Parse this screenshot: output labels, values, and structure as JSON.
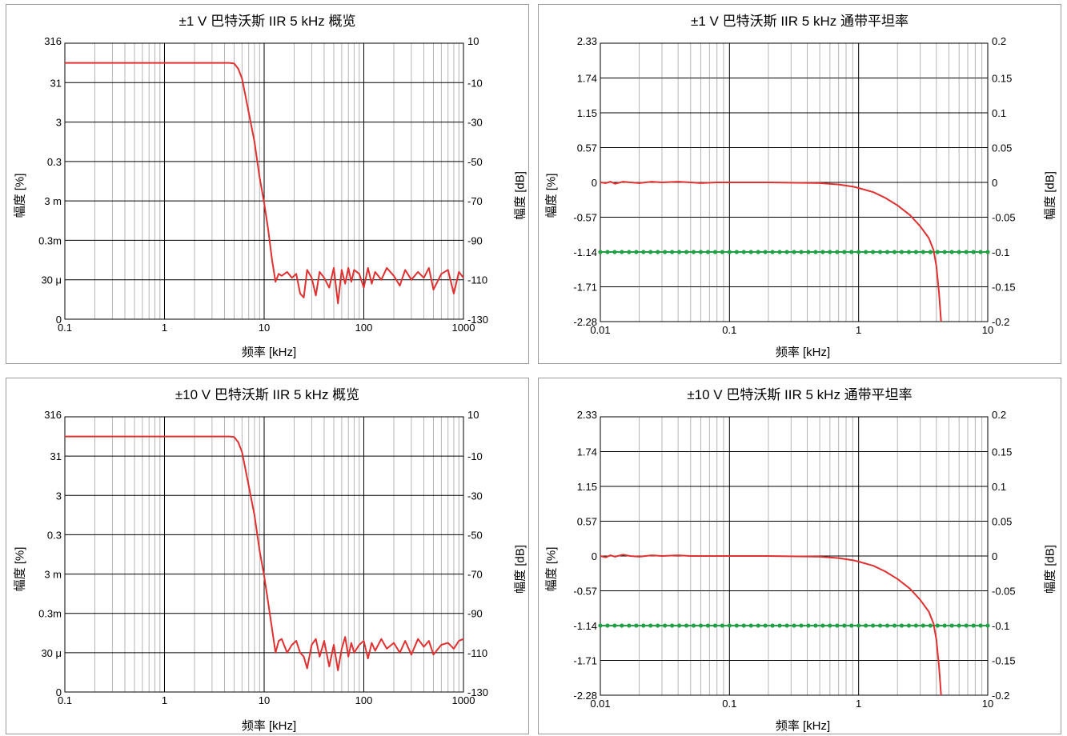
{
  "colors": {
    "trace": "#e03030",
    "limit": "#22a045",
    "major_grid": "#000000",
    "minor_grid": "#b4b4b4",
    "border": "#9a9a9a"
  },
  "chart_data": [
    {
      "type": "line",
      "title": "±1 V 巴特沃斯 IIR 5 kHz 概览",
      "xlabel": "频率 [kHz]",
      "ylabel": "幅度 [%]",
      "y2label": "幅度 [dB]",
      "x_scale": "log",
      "xlim": [
        0.1,
        1000
      ],
      "x_ticks": [
        "0.1",
        "1",
        "10",
        "100",
        "1000"
      ],
      "y2lim": [
        -130,
        10
      ],
      "y_ticks": [
        "316",
        "31",
        "3",
        "0.3",
        "3 m",
        "0.3m",
        "30 μ",
        "0"
      ],
      "y2_ticks": [
        "10",
        "-10",
        "-30",
        "-50",
        "-70",
        "-90",
        "-110",
        "-130"
      ],
      "grid": true,
      "series": [
        {
          "x": [
            0.1,
            1,
            3,
            4.5,
            5,
            5.5,
            6,
            7,
            8,
            9,
            10,
            11,
            12,
            13,
            14,
            15,
            17,
            19,
            21,
            23,
            25,
            27,
            30,
            33,
            36,
            40,
            45,
            50,
            55,
            60,
            65,
            70,
            75,
            80,
            90,
            100,
            110,
            120,
            130,
            150,
            170,
            200,
            230,
            260,
            300,
            350,
            400,
            450,
            500,
            600,
            700,
            800,
            900,
            1000
          ],
          "y": [
            0,
            0,
            0,
            0,
            -0.3,
            -3,
            -8,
            -25,
            -40,
            -58,
            -71,
            -85,
            -100,
            -111,
            -107,
            -108,
            -106,
            -109,
            -107,
            -117,
            -119,
            -105,
            -109,
            -118,
            -106,
            -109,
            -114,
            -104,
            -122,
            -105,
            -112,
            -104,
            -111,
            -105,
            -107,
            -114,
            -104,
            -112,
            -106,
            -110,
            -104,
            -108,
            -113,
            -105,
            -110,
            -106,
            -109,
            -104,
            -115,
            -107,
            -105,
            -117,
            -106,
            -109
          ]
        }
      ]
    },
    {
      "type": "line",
      "title": "±1 V 巴特沃斯 IIR 5 kHz 通带平坦率",
      "xlabel": "频率 [kHz]",
      "ylabel": "幅度 [%]",
      "y2label": "幅度 [dB]",
      "x_scale": "log",
      "xlim": [
        0.01,
        10
      ],
      "x_ticks": [
        "0.01",
        "0.1",
        "1",
        "10"
      ],
      "y2lim": [
        -0.2,
        0.2
      ],
      "y_ticks": [
        "2.33",
        "1.74",
        "1.15",
        "0.57",
        "0",
        "-0.57",
        "-1.14",
        "-1.71",
        "-2.28"
      ],
      "y2_ticks": [
        "0.2",
        "0.15",
        "0.1",
        "0.05",
        "0",
        "-0.05",
        "-0.1",
        "-0.15",
        "-0.2"
      ],
      "grid": true,
      "limit_line": -0.1,
      "series": [
        {
          "x": [
            0.01,
            0.011,
            0.012,
            0.013,
            0.015,
            0.017,
            0.02,
            0.025,
            0.03,
            0.04,
            0.05,
            0.06,
            0.08,
            0.1,
            0.2,
            0.3,
            0.5,
            0.7,
            0.9,
            1.0,
            1.3,
            1.6,
            2.0,
            2.5,
            3.0,
            3.5,
            3.8,
            4.0,
            4.2,
            4.35
          ],
          "y": [
            0.0,
            -0.001,
            0.001,
            -0.002,
            0.001,
            0.0,
            -0.001,
            0.001,
            0.0,
            0.001,
            0.0,
            -0.001,
            0.0,
            0.0,
            0.0,
            -0.0005,
            -0.001,
            -0.003,
            -0.006,
            -0.008,
            -0.014,
            -0.022,
            -0.033,
            -0.047,
            -0.063,
            -0.08,
            -0.097,
            -0.12,
            -0.16,
            -0.2
          ]
        }
      ]
    },
    {
      "type": "line",
      "title": "±10 V 巴特沃斯 IIR 5 kHz 概览",
      "xlabel": "频率 [kHz]",
      "ylabel": "幅度 [%]",
      "y2label": "幅度 [dB]",
      "x_scale": "log",
      "xlim": [
        0.1,
        1000
      ],
      "x_ticks": [
        "0.1",
        "1",
        "10",
        "100",
        "1000"
      ],
      "y2lim": [
        -130,
        10
      ],
      "y_ticks": [
        "316",
        "31",
        "3",
        "0.3",
        "3 m",
        "0.3m",
        "30 μ",
        "0"
      ],
      "y2_ticks": [
        "10",
        "-10",
        "-30",
        "-50",
        "-70",
        "-90",
        "-110",
        "-130"
      ],
      "grid": true,
      "series": [
        {
          "x": [
            0.1,
            1,
            3,
            4.5,
            5,
            5.5,
            6,
            7,
            8,
            9,
            10,
            11,
            12,
            13,
            14,
            15,
            17,
            19,
            21,
            23,
            25,
            27,
            30,
            33,
            36,
            40,
            45,
            50,
            55,
            60,
            65,
            70,
            75,
            80,
            90,
            100,
            110,
            120,
            130,
            150,
            170,
            200,
            230,
            260,
            300,
            350,
            400,
            450,
            500,
            600,
            700,
            800,
            900,
            1000
          ],
          "y": [
            0,
            0,
            0,
            0,
            -0.3,
            -3,
            -8,
            -25,
            -40,
            -58,
            -71,
            -85,
            -98,
            -110,
            -104,
            -103,
            -110,
            -106,
            -104,
            -110,
            -112,
            -118,
            -106,
            -103,
            -112,
            -104,
            -117,
            -106,
            -119,
            -108,
            -102,
            -112,
            -105,
            -110,
            -106,
            -104,
            -113,
            -105,
            -109,
            -103,
            -108,
            -105,
            -110,
            -104,
            -111,
            -103,
            -107,
            -104,
            -111,
            -106,
            -105,
            -108,
            -104,
            -103
          ]
        }
      ]
    },
    {
      "type": "line",
      "title": "±10 V 巴特沃斯 IIR 5 kHz 通带平坦率",
      "xlabel": "频率 [kHz]",
      "ylabel": "幅度 [%]",
      "y2label": "幅度 [dB]",
      "x_scale": "log",
      "xlim": [
        0.01,
        10
      ],
      "x_ticks": [
        "0.01",
        "0.1",
        "1",
        "10"
      ],
      "y2lim": [
        -0.2,
        0.2
      ],
      "y_ticks": [
        "2.33",
        "1.74",
        "1.15",
        "0.57",
        "0",
        "-0.57",
        "-1.14",
        "-1.71",
        "-2.28"
      ],
      "y2_ticks": [
        "0.2",
        "0.15",
        "0.1",
        "0.05",
        "0",
        "-0.05",
        "-0.1",
        "-0.15",
        "-0.2"
      ],
      "grid": true,
      "limit_line": -0.1,
      "series": [
        {
          "x": [
            0.01,
            0.011,
            0.012,
            0.013,
            0.015,
            0.017,
            0.02,
            0.025,
            0.03,
            0.04,
            0.05,
            0.06,
            0.08,
            0.1,
            0.2,
            0.3,
            0.5,
            0.7,
            0.9,
            1.0,
            1.3,
            1.6,
            2.0,
            2.5,
            3.0,
            3.5,
            3.8,
            4.0,
            4.2,
            4.35
          ],
          "y": [
            0.0,
            -0.002,
            0.001,
            -0.001,
            0.002,
            0.0,
            -0.001,
            0.001,
            0.0,
            0.001,
            0.0,
            0.0,
            0.0,
            0.0,
            0.0,
            -0.0005,
            -0.001,
            -0.003,
            -0.006,
            -0.008,
            -0.014,
            -0.022,
            -0.033,
            -0.047,
            -0.063,
            -0.08,
            -0.097,
            -0.12,
            -0.16,
            -0.2
          ]
        }
      ]
    }
  ]
}
